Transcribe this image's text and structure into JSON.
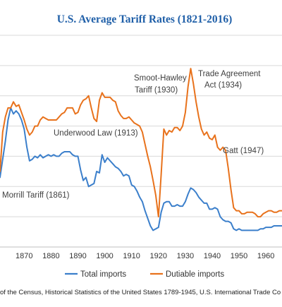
{
  "chart_data": {
    "type": "line",
    "title": "U.S. Average Tariff Rates (1821-2016)",
    "xlabel": "",
    "ylabel": "",
    "xlim": [
      1861,
      1966
    ],
    "ylim": [
      0,
      70
    ],
    "x_ticks": [
      "1870",
      "1880",
      "1890",
      "1900",
      "1910",
      "1920",
      "1930",
      "1940",
      "1950",
      "1960"
    ],
    "grid": true,
    "legend_position": "bottom",
    "series": [
      {
        "name": "Total imports",
        "color": "#3b7fcb",
        "points": [
          [
            1861,
            23
          ],
          [
            1862,
            29
          ],
          [
            1863,
            35
          ],
          [
            1864,
            42
          ],
          [
            1865,
            46
          ],
          [
            1866,
            44
          ],
          [
            1867,
            45
          ],
          [
            1868,
            44
          ],
          [
            1869,
            42
          ],
          [
            1870,
            39
          ],
          [
            1871,
            33
          ],
          [
            1872,
            28.5
          ],
          [
            1873,
            29
          ],
          [
            1874,
            30
          ],
          [
            1875,
            29.5
          ],
          [
            1876,
            30.5
          ],
          [
            1877,
            29.5
          ],
          [
            1878,
            30
          ],
          [
            1879,
            30.5
          ],
          [
            1880,
            30
          ],
          [
            1881,
            30.5
          ],
          [
            1882,
            30
          ],
          [
            1883,
            30
          ],
          [
            1884,
            31
          ],
          [
            1885,
            31.5
          ],
          [
            1886,
            31.5
          ],
          [
            1887,
            31.5
          ],
          [
            1888,
            30.5
          ],
          [
            1889,
            30
          ],
          [
            1890,
            30
          ],
          [
            1891,
            25.5
          ],
          [
            1892,
            22
          ],
          [
            1893,
            23
          ],
          [
            1894,
            20
          ],
          [
            1895,
            20.5
          ],
          [
            1896,
            21
          ],
          [
            1897,
            25
          ],
          [
            1898,
            24.5
          ],
          [
            1899,
            30.5
          ],
          [
            1900,
            28
          ],
          [
            1901,
            29.5
          ],
          [
            1902,
            28.5
          ],
          [
            1903,
            27.5
          ],
          [
            1904,
            26.5
          ],
          [
            1905,
            26
          ],
          [
            1906,
            25
          ],
          [
            1907,
            23.5
          ],
          [
            1908,
            24
          ],
          [
            1909,
            23.5
          ],
          [
            1910,
            20.5
          ],
          [
            1911,
            20
          ],
          [
            1912,
            18.5
          ],
          [
            1913,
            16.5
          ],
          [
            1914,
            15
          ],
          [
            1915,
            12
          ],
          [
            1916,
            9.5
          ],
          [
            1917,
            7
          ],
          [
            1918,
            5.5
          ],
          [
            1919,
            6
          ],
          [
            1920,
            6.5
          ],
          [
            1921,
            11.5
          ],
          [
            1922,
            14.5
          ],
          [
            1923,
            15
          ],
          [
            1924,
            15
          ],
          [
            1925,
            13.5
          ],
          [
            1926,
            13.5
          ],
          [
            1927,
            14
          ],
          [
            1928,
            13.5
          ],
          [
            1929,
            13.5
          ],
          [
            1930,
            15
          ],
          [
            1931,
            17.5
          ],
          [
            1932,
            19.5
          ],
          [
            1933,
            19
          ],
          [
            1934,
            18
          ],
          [
            1935,
            16.5
          ],
          [
            1936,
            15.5
          ],
          [
            1937,
            14.5
          ],
          [
            1938,
            14.5
          ],
          [
            1939,
            12.5
          ],
          [
            1940,
            12.5
          ],
          [
            1941,
            13
          ],
          [
            1942,
            12.5
          ],
          [
            1943,
            10
          ],
          [
            1944,
            9
          ],
          [
            1945,
            8.5
          ],
          [
            1946,
            8.5
          ],
          [
            1947,
            8
          ],
          [
            1948,
            6
          ],
          [
            1949,
            5.5
          ],
          [
            1950,
            6
          ],
          [
            1951,
            5.5
          ],
          [
            1952,
            5.5
          ],
          [
            1953,
            5.5
          ],
          [
            1954,
            5.5
          ],
          [
            1955,
            5.5
          ],
          [
            1956,
            5.5
          ],
          [
            1957,
            5.5
          ],
          [
            1958,
            6
          ],
          [
            1959,
            6
          ],
          [
            1960,
            6.5
          ],
          [
            1961,
            6.5
          ],
          [
            1962,
            6.5
          ],
          [
            1963,
            7
          ],
          [
            1964,
            7
          ],
          [
            1965,
            7
          ],
          [
            1966,
            7
          ]
        ]
      },
      {
        "name": "Dutiable imports",
        "color": "#e8721c",
        "points": [
          [
            1861,
            25
          ],
          [
            1862,
            38
          ],
          [
            1863,
            43
          ],
          [
            1864,
            46
          ],
          [
            1865,
            46
          ],
          [
            1866,
            48
          ],
          [
            1867,
            46.5
          ],
          [
            1868,
            47
          ],
          [
            1869,
            44.5
          ],
          [
            1870,
            42
          ],
          [
            1871,
            39
          ],
          [
            1872,
            37
          ],
          [
            1873,
            38
          ],
          [
            1874,
            40
          ],
          [
            1875,
            40
          ],
          [
            1876,
            42
          ],
          [
            1877,
            43
          ],
          [
            1878,
            42.5
          ],
          [
            1879,
            42
          ],
          [
            1880,
            42
          ],
          [
            1881,
            42
          ],
          [
            1882,
            42
          ],
          [
            1883,
            43
          ],
          [
            1884,
            44
          ],
          [
            1885,
            44.5
          ],
          [
            1886,
            46
          ],
          [
            1887,
            46
          ],
          [
            1888,
            46
          ],
          [
            1889,
            44
          ],
          [
            1890,
            44.5
          ],
          [
            1891,
            47
          ],
          [
            1892,
            48.5
          ],
          [
            1893,
            49
          ],
          [
            1894,
            50
          ],
          [
            1895,
            46
          ],
          [
            1896,
            42.5
          ],
          [
            1897,
            41.5
          ],
          [
            1898,
            48.5
          ],
          [
            1899,
            51
          ],
          [
            1900,
            49.5
          ],
          [
            1901,
            49.5
          ],
          [
            1902,
            49.5
          ],
          [
            1903,
            48.5
          ],
          [
            1904,
            48
          ],
          [
            1905,
            45
          ],
          [
            1906,
            43.5
          ],
          [
            1907,
            42.5
          ],
          [
            1908,
            42.5
          ],
          [
            1909,
            43
          ],
          [
            1910,
            42
          ],
          [
            1911,
            41
          ],
          [
            1912,
            40.5
          ],
          [
            1913,
            40
          ],
          [
            1914,
            38
          ],
          [
            1915,
            34
          ],
          [
            1916,
            30
          ],
          [
            1917,
            26.5
          ],
          [
            1918,
            22
          ],
          [
            1919,
            17
          ],
          [
            1920,
            10
          ],
          [
            1921,
            24
          ],
          [
            1922,
            39
          ],
          [
            1923,
            37
          ],
          [
            1924,
            38.5
          ],
          [
            1925,
            38
          ],
          [
            1926,
            39.5
          ],
          [
            1927,
            39.5
          ],
          [
            1928,
            38.5
          ],
          [
            1929,
            40
          ],
          [
            1930,
            44.5
          ],
          [
            1931,
            53
          ],
          [
            1932,
            59
          ],
          [
            1933,
            54
          ],
          [
            1934,
            48
          ],
          [
            1935,
            43
          ],
          [
            1936,
            39
          ],
          [
            1937,
            37
          ],
          [
            1938,
            38
          ],
          [
            1939,
            36
          ],
          [
            1940,
            35.5
          ],
          [
            1941,
            37
          ],
          [
            1942,
            33
          ],
          [
            1943,
            32
          ],
          [
            1944,
            33
          ],
          [
            1945,
            32
          ],
          [
            1946,
            26
          ],
          [
            1947,
            19
          ],
          [
            1948,
            13
          ],
          [
            1949,
            12
          ],
          [
            1950,
            12
          ],
          [
            1951,
            11
          ],
          [
            1952,
            11
          ],
          [
            1953,
            11.5
          ],
          [
            1954,
            11.5
          ],
          [
            1955,
            11.5
          ],
          [
            1956,
            11
          ],
          [
            1957,
            10
          ],
          [
            1958,
            10
          ],
          [
            1959,
            11
          ],
          [
            1960,
            11.5
          ],
          [
            1961,
            12
          ],
          [
            1962,
            12
          ],
          [
            1963,
            11.5
          ],
          [
            1964,
            11.5
          ],
          [
            1965,
            12
          ],
          [
            1966,
            12
          ]
        ]
      }
    ],
    "annotations": [
      {
        "text": "Smoot-Hawley"
      },
      {
        "text": "Tariff (1930)"
      },
      {
        "text": "Trade Agreement"
      },
      {
        "text": "Act (1934)"
      },
      {
        "text": "Underwood  Law (1913)"
      },
      {
        "text": "Gatt (1947)"
      },
      {
        "text": "Morrill Tariff  (1861)"
      }
    ]
  },
  "source_text": "of the Census, Historical Statistics of the United States 1789-1945, U.S. International Trade Co"
}
